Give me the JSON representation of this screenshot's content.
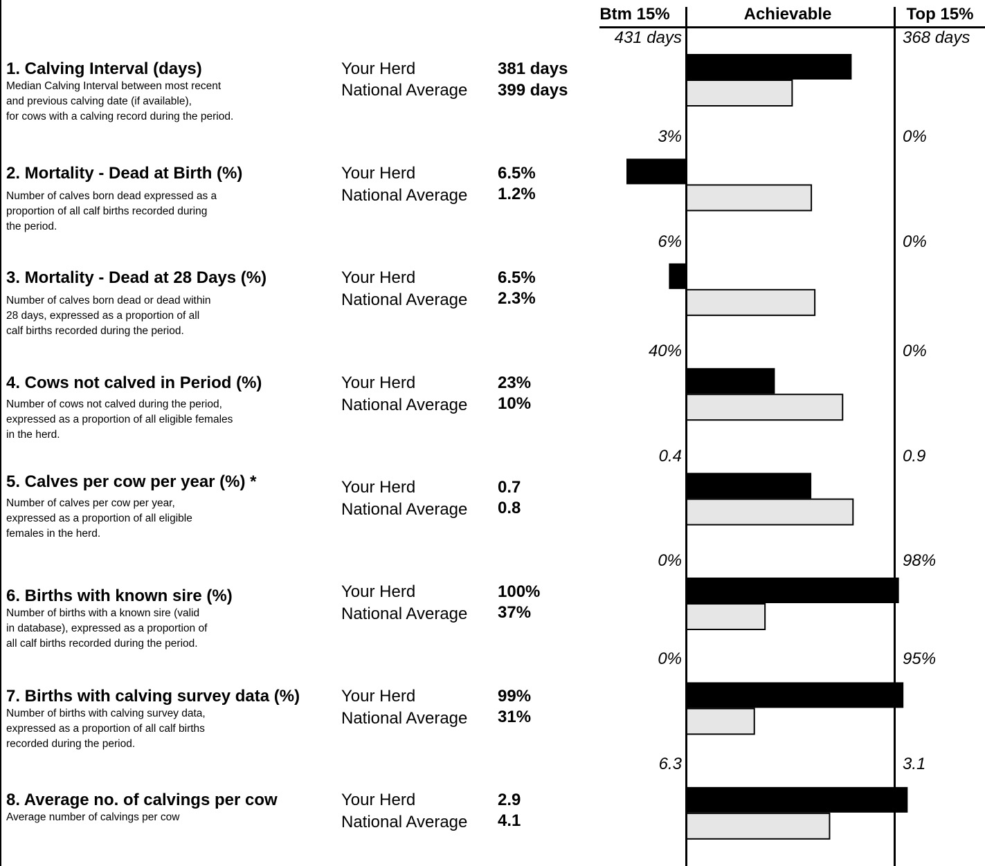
{
  "header": {
    "bottom_label": "Btm 15%",
    "achievable_label": "Achievable",
    "top_label": "Top 15%"
  },
  "colors": {
    "your_herd_bar": "#000000",
    "national_average_bar": "#e6e6e6"
  },
  "row_labels": {
    "your_herd": "Your Herd",
    "national_average": "National Average"
  },
  "metrics": [
    {
      "title": "1. Calving Interval (days)",
      "description": "Median Calving Interval between most recent\nand previous calving date (if available),\nfor cows with a calving record during the period.",
      "your_herd": "381 days",
      "national_average": "399 days",
      "bottom_15": "431 days",
      "top_15": "368 days"
    },
    {
      "title": "2. Mortality - Dead at Birth (%)",
      "description": "Number of calves born dead expressed as a\nproportion of all calf births recorded during\nthe period.",
      "your_herd": "6.5%",
      "national_average": "1.2%",
      "bottom_15": "3%",
      "top_15": "0%"
    },
    {
      "title": "3. Mortality - Dead at 28 Days (%)",
      "description": "Number of calves born dead or dead within\n28 days, expressed as a proportion of all\ncalf births recorded during the period.",
      "your_herd": "6.5%",
      "national_average": "2.3%",
      "bottom_15": "6%",
      "top_15": "0%"
    },
    {
      "title": "4. Cows not calved in Period (%)",
      "description": "Number of cows not calved during the period,\nexpressed as a proportion of all eligible females\nin the herd.",
      "your_herd": "23%",
      "national_average": "10%",
      "bottom_15": "40%",
      "top_15": "0%"
    },
    {
      "title": "5. Calves per cow per year (%) *",
      "description": "Number of calves per cow per year,\nexpressed as a proportion of all eligible\nfemales in the herd.",
      "your_herd": "0.7",
      "national_average": "0.8",
      "bottom_15": "0.4",
      "top_15": "0.9"
    },
    {
      "title": "6. Births with known sire (%)",
      "description": "Number of births with a known sire (valid\nin database), expressed as a proportion of\nall calf births recorded during the period.",
      "your_herd": "100%",
      "national_average": "37%",
      "bottom_15": "0%",
      "top_15": "98%"
    },
    {
      "title": "7. Births with calving survey data (%)",
      "description": "Number of births with calving survey data,\nexpressed as a proportion of all calf births\nrecorded during the period.",
      "your_herd": "99%",
      "national_average": "31%",
      "bottom_15": "0%",
      "top_15": "95%"
    },
    {
      "title": "8. Average no. of calvings per cow",
      "description": "Average number of calvings per cow",
      "your_herd": "2.9",
      "national_average": "4.1",
      "bottom_15": "6.3",
      "top_15": "3.1"
    }
  ],
  "chart_data": {
    "type": "bar",
    "orientation": "horizontal",
    "scale_note": "Each metric is scaled between its Btm 15% value (left reference line) and Top 15% value (right reference line).",
    "categories": [
      "1. Calving Interval (days)",
      "2. Mortality - Dead at Birth (%)",
      "3. Mortality - Dead at 28 Days (%)",
      "4. Cows not calved in Period (%)",
      "5. Calves per cow per year (%) *",
      "6. Births with known sire (%)",
      "7. Births with calving survey data (%)",
      "8. Average no. of calvings per cow"
    ],
    "bottom_15": [
      431,
      3,
      6,
      40,
      0.4,
      0,
      0,
      6.3
    ],
    "top_15": [
      368,
      0,
      0,
      0,
      0.9,
      98,
      95,
      3.1
    ],
    "series": [
      {
        "name": "Your Herd",
        "values": [
          381,
          6.5,
          6.5,
          23,
          0.7,
          100,
          99,
          2.9
        ]
      },
      {
        "name": "National Average",
        "values": [
          399,
          1.2,
          2.3,
          10,
          0.8,
          37,
          31,
          4.1
        ]
      }
    ]
  }
}
